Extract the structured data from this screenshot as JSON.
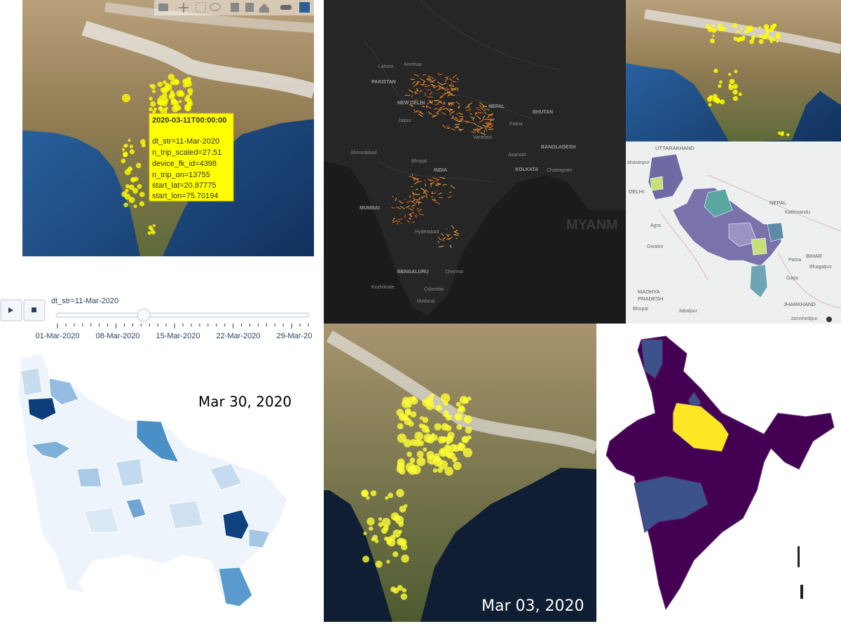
{
  "panels": {
    "scatter_map": {
      "tooltip": {
        "title": "2020-03-11T00:00:00",
        "lines": [
          "dt_str=11-Mar-2020",
          "n_trip_scaled=27.51",
          "device_fk_id=4398",
          "n_trip_on=13755",
          "start_lat=20.87775",
          "start_lon=75.70194"
        ]
      }
    },
    "slider": {
      "current": "dt_str=11-Mar-2020",
      "ticks": [
        "01-Mar-2020",
        "08-Mar-2020",
        "15-Mar-2020",
        "22-Mar-2020",
        "29-Mar-20"
      ]
    },
    "dark_map": {
      "labels": [
        "PAKISTAN",
        "Lahore",
        "Amritsar",
        "NEW DELHI",
        "Jaipur",
        "NEPAL",
        "BHUTAN",
        "Varanasi",
        "Patna",
        "BANGLADESH",
        "Ahmedabad",
        "Bhopal",
        "INDIA",
        "KOLKATA",
        "Asansol",
        "Chattogram",
        "MUMBAI",
        "Hyderabad",
        "BENGALURU",
        "Chennai",
        "Kozhikode",
        "Madurai",
        "Colombo",
        "MYANM"
      ]
    },
    "district_map": {
      "labels": [
        "UTTARAKHAND",
        "aharanpur",
        "DELHI",
        "NEPAL",
        "Kathmandu",
        "Agra",
        "Gwalior",
        "BIHAR",
        "Patna",
        "Bhagalpur",
        "Gaya",
        "MADHYA",
        "PRADESH",
        "Jabalpur",
        "JHARKHAND",
        "Bhopal",
        "Jamshedpur"
      ]
    },
    "up_choropleth": {
      "date": "Mar 30, 2020"
    },
    "satellite_map": {
      "date": "Mar 03, 2020"
    }
  }
}
